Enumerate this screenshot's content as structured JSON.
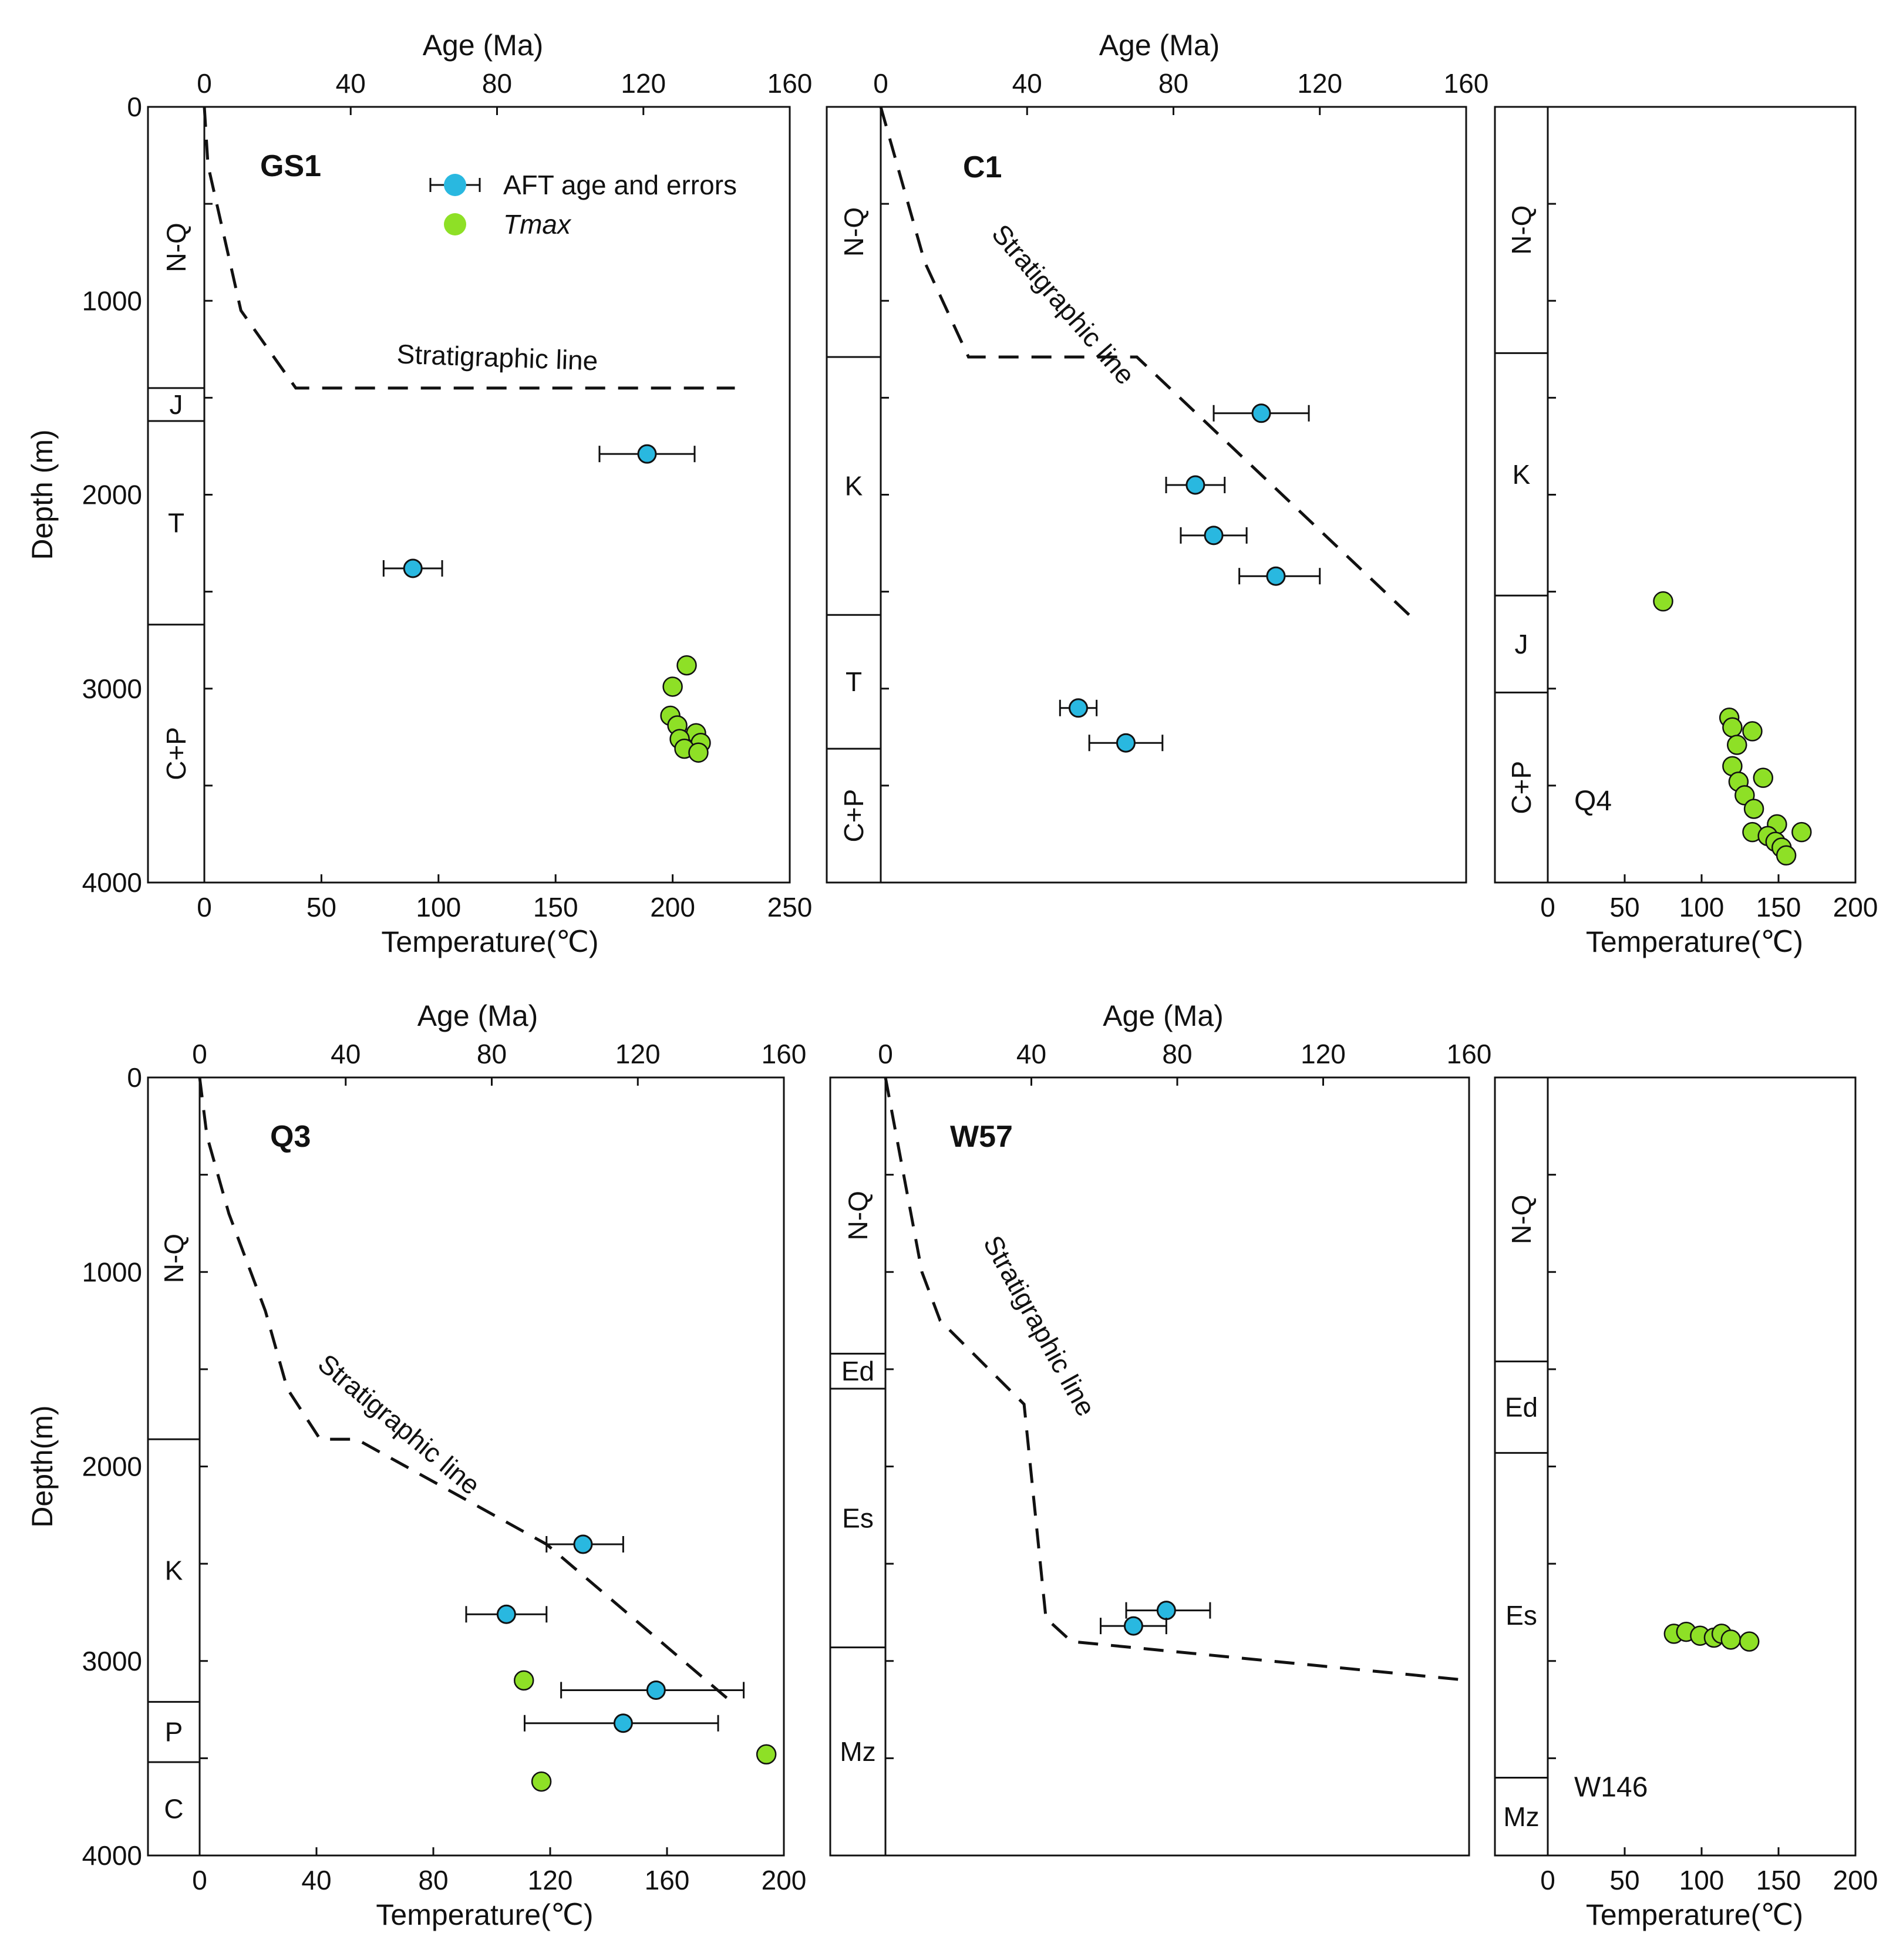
{
  "chart_data": [
    {
      "id": "GS1",
      "type": "scatter",
      "title": "GS1",
      "top_axis": {
        "label": "Age (Ma)",
        "ticks": [
          0,
          40,
          80,
          120,
          160
        ],
        "range": [
          0,
          160
        ]
      },
      "bottom_axis": {
        "label": "Temperature(℃)",
        "ticks": [
          0,
          50,
          100,
          150,
          200,
          250
        ],
        "range": [
          0,
          250
        ]
      },
      "ylabel": "Depth (m)",
      "y_ticks": [
        0,
        1000,
        2000,
        3000,
        4000
      ],
      "ylim": [
        0,
        4000
      ],
      "legend": [
        {
          "name": "AFT age and errors",
          "symbol": "circle-errorbar",
          "color": "#29b8e0"
        },
        {
          "name": "Tmax",
          "symbol": "circle",
          "color": "#8ee026",
          "italic": true
        }
      ],
      "strata": [
        {
          "label": "N-Q",
          "top": 0,
          "bottom": 1450,
          "rotated": true
        },
        {
          "label": "J",
          "top": 1450,
          "bottom": 1620,
          "rotated": false
        },
        {
          "label": "T",
          "top": 1620,
          "bottom": 2670,
          "rotated": false
        },
        {
          "label": "C+P",
          "top": 2670,
          "bottom": 4000,
          "rotated": true
        }
      ],
      "stratigraphic_line": {
        "label": "Stratigraphic line",
        "label_age": 80,
        "label_depth": 1340,
        "label_angle": 2,
        "points_age": [
          [
            0,
            0
          ],
          [
            1,
            300
          ],
          [
            10,
            1050
          ],
          [
            25,
            1450
          ],
          [
            145,
            1450
          ]
        ]
      },
      "aft": [
        {
          "depth": 1790,
          "age": 121,
          "err_min": 108,
          "err_max": 134
        },
        {
          "depth": 2380,
          "age": 57,
          "err_min": 49,
          "err_max": 65
        }
      ],
      "tmax": [
        {
          "depth": 2880,
          "temp": 206
        },
        {
          "depth": 2990,
          "temp": 200
        },
        {
          "depth": 3140,
          "temp": 199
        },
        {
          "depth": 3190,
          "temp": 202
        },
        {
          "depth": 3230,
          "temp": 210
        },
        {
          "depth": 3260,
          "temp": 203
        },
        {
          "depth": 3280,
          "temp": 212
        },
        {
          "depth": 3310,
          "temp": 205
        },
        {
          "depth": 3330,
          "temp": 211
        }
      ]
    },
    {
      "id": "C1",
      "type": "scatter",
      "title": "C1",
      "top_axis": {
        "label": "Age (Ma)",
        "ticks": [
          0,
          40,
          80,
          120,
          160
        ],
        "range": [
          0,
          160
        ]
      },
      "y_ticks": [
        0,
        1000,
        2000,
        3000,
        4000
      ],
      "ylim": [
        0,
        4000
      ],
      "strata": [
        {
          "label": "N-Q",
          "top": 0,
          "bottom": 1290,
          "rotated": true
        },
        {
          "label": "K",
          "top": 1290,
          "bottom": 2620,
          "rotated": false
        },
        {
          "label": "T",
          "top": 2620,
          "bottom": 3310,
          "rotated": false
        },
        {
          "label": "C+P",
          "top": 3310,
          "bottom": 4000,
          "rotated": true
        }
      ],
      "stratigraphic_line": {
        "label": "Stratigraphic line",
        "label_age": 48,
        "label_depth": 1050,
        "label_angle": 49,
        "points_age": [
          [
            0,
            0
          ],
          [
            3,
            200
          ],
          [
            12,
            800
          ],
          [
            24,
            1290
          ],
          [
            70,
            1290
          ],
          [
            145,
            2630
          ]
        ]
      },
      "aft": [
        {
          "depth": 1580,
          "age": 104,
          "err_min": 91,
          "err_max": 117
        },
        {
          "depth": 1950,
          "age": 86,
          "err_min": 78,
          "err_max": 94
        },
        {
          "depth": 2210,
          "age": 91,
          "err_min": 82,
          "err_max": 100
        },
        {
          "depth": 2420,
          "age": 108,
          "err_min": 98,
          "err_max": 120
        },
        {
          "depth": 3100,
          "age": 54,
          "err_min": 49,
          "err_max": 59
        },
        {
          "depth": 3280,
          "age": 67,
          "err_min": 57,
          "err_max": 77
        }
      ]
    },
    {
      "id": "Q4",
      "type": "scatter",
      "title": "Q4",
      "bottom_axis": {
        "label": "Temperature(℃)",
        "ticks": [
          0,
          50,
          100,
          150,
          200
        ],
        "range": [
          0,
          200
        ]
      },
      "ylim": [
        0,
        4000
      ],
      "y_minor": [
        0,
        500,
        1000,
        1500,
        2000,
        2500,
        3000,
        3500,
        4000
      ],
      "strata": [
        {
          "label": "N-Q",
          "top": 0,
          "bottom": 1270,
          "rotated": true
        },
        {
          "label": "K",
          "top": 1270,
          "bottom": 2520,
          "rotated": false
        },
        {
          "label": "J",
          "top": 2520,
          "bottom": 3020,
          "rotated": false
        },
        {
          "label": "C+P",
          "top": 3020,
          "bottom": 4000,
          "rotated": true
        }
      ],
      "tmax": [
        {
          "depth": 2550,
          "temp": 75
        },
        {
          "depth": 3150,
          "temp": 118
        },
        {
          "depth": 3200,
          "temp": 120
        },
        {
          "depth": 3220,
          "temp": 133
        },
        {
          "depth": 3290,
          "temp": 123
        },
        {
          "depth": 3400,
          "temp": 120
        },
        {
          "depth": 3460,
          "temp": 140
        },
        {
          "depth": 3480,
          "temp": 124
        },
        {
          "depth": 3550,
          "temp": 128
        },
        {
          "depth": 3620,
          "temp": 134
        },
        {
          "depth": 3700,
          "temp": 149
        },
        {
          "depth": 3740,
          "temp": 133
        },
        {
          "depth": 3740,
          "temp": 165
        },
        {
          "depth": 3760,
          "temp": 143
        },
        {
          "depth": 3790,
          "temp": 148
        },
        {
          "depth": 3820,
          "temp": 152
        },
        {
          "depth": 3860,
          "temp": 155
        }
      ]
    },
    {
      "id": "Q3",
      "type": "scatter",
      "title": "Q3",
      "top_axis": {
        "label": "Age (Ma)",
        "ticks": [
          0,
          40,
          80,
          120,
          160
        ],
        "range": [
          0,
          160
        ]
      },
      "bottom_axis": {
        "label": "Temperature(℃)",
        "ticks": [
          0,
          40,
          80,
          120,
          160,
          200
        ],
        "range": [
          0,
          200
        ]
      },
      "ylabel": "Depth(m)",
      "y_ticks": [
        0,
        1000,
        2000,
        3000,
        4000
      ],
      "ylim": [
        0,
        4000
      ],
      "strata": [
        {
          "label": "N-Q",
          "top": 0,
          "bottom": 1860,
          "rotated": true
        },
        {
          "label": "K",
          "top": 1860,
          "bottom": 3210,
          "rotated": false
        },
        {
          "label": "P",
          "top": 3210,
          "bottom": 3520,
          "rotated": false
        },
        {
          "label": "C",
          "top": 3520,
          "bottom": 4000,
          "rotated": false
        }
      ],
      "stratigraphic_line": {
        "label": "Stratigraphic line",
        "label_age": 53,
        "label_depth": 1820,
        "label_angle": 40,
        "points_age": [
          [
            0,
            0
          ],
          [
            2,
            300
          ],
          [
            8,
            700
          ],
          [
            18,
            1200
          ],
          [
            24,
            1600
          ],
          [
            33,
            1860
          ],
          [
            43,
            1860
          ],
          [
            95,
            2400
          ],
          [
            145,
            3200
          ]
        ]
      },
      "aft": [
        {
          "depth": 2400,
          "age": 105,
          "err_min": 95,
          "err_max": 116
        },
        {
          "depth": 2760,
          "age": 84,
          "err_min": 73,
          "err_max": 95
        },
        {
          "depth": 3150,
          "age": 125,
          "err_min": 99,
          "err_max": 149
        },
        {
          "depth": 3320,
          "age": 116,
          "err_min": 89,
          "err_max": 142
        }
      ],
      "tmax": [
        {
          "depth": 3100,
          "temp": 111
        },
        {
          "depth": 3480,
          "temp": 194
        },
        {
          "depth": 3620,
          "temp": 117
        }
      ]
    },
    {
      "id": "W57",
      "type": "scatter",
      "title": "W57",
      "top_axis": {
        "label": "Age (Ma)",
        "ticks": [
          0,
          40,
          80,
          120,
          160
        ],
        "range": [
          0,
          160
        ]
      },
      "y_ticks": [
        0,
        1000,
        2000,
        3000,
        4000
      ],
      "ylim": [
        0,
        4000
      ],
      "strata": [
        {
          "label": "N-Q",
          "top": 0,
          "bottom": 1420,
          "rotated": true
        },
        {
          "label": "Ed",
          "top": 1420,
          "bottom": 1600,
          "rotated": false
        },
        {
          "label": "Es",
          "top": 1600,
          "bottom": 2930,
          "rotated": false
        },
        {
          "label": "Mz",
          "top": 2930,
          "bottom": 4000,
          "rotated": false
        }
      ],
      "stratigraphic_line": {
        "label": "Stratigraphic line",
        "label_age": 40,
        "label_depth": 1300,
        "label_angle": 61,
        "points_age": [
          [
            0,
            0
          ],
          [
            3,
            300
          ],
          [
            10,
            1000
          ],
          [
            15,
            1250
          ],
          [
            38,
            1680
          ],
          [
            44,
            2780
          ],
          [
            51,
            2900
          ],
          [
            160,
            3100
          ]
        ]
      },
      "aft": [
        {
          "depth": 2740,
          "age": 77,
          "err_min": 66,
          "err_max": 89
        },
        {
          "depth": 2820,
          "age": 68,
          "err_min": 59,
          "err_max": 77
        }
      ]
    },
    {
      "id": "W146",
      "type": "scatter",
      "title": "W146",
      "bottom_axis": {
        "label": "Temperature(℃)",
        "ticks": [
          0,
          50,
          100,
          150,
          200
        ],
        "range": [
          0,
          200
        ]
      },
      "ylim": [
        0,
        4000
      ],
      "y_minor": [
        0,
        500,
        1000,
        1500,
        2000,
        2500,
        3000,
        3500,
        4000
      ],
      "strata": [
        {
          "label": "N-Q",
          "top": 0,
          "bottom": 1460,
          "rotated": true
        },
        {
          "label": "Ed",
          "top": 1460,
          "bottom": 1930,
          "rotated": false
        },
        {
          "label": "Es",
          "top": 1930,
          "bottom": 3600,
          "rotated": false
        },
        {
          "label": "Mz",
          "top": 3600,
          "bottom": 4000,
          "rotated": false
        }
      ],
      "tmax": [
        {
          "depth": 2860,
          "temp": 82
        },
        {
          "depth": 2850,
          "temp": 90
        },
        {
          "depth": 2870,
          "temp": 99
        },
        {
          "depth": 2880,
          "temp": 108
        },
        {
          "depth": 2860,
          "temp": 113
        },
        {
          "depth": 2890,
          "temp": 119
        },
        {
          "depth": 2900,
          "temp": 131
        }
      ]
    }
  ]
}
